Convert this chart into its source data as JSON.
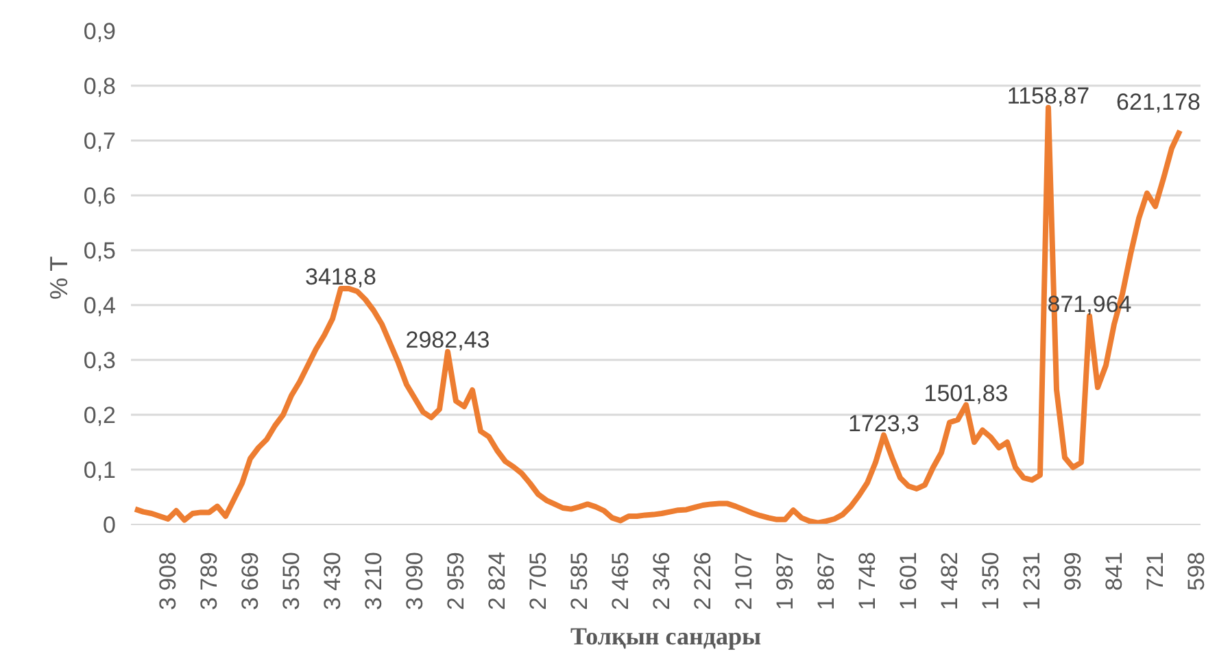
{
  "chart_data": {
    "type": "line",
    "xlabel": "Толқын сандары",
    "ylabel": "% T",
    "categories": [
      null,
      null,
      null,
      null,
      "3 908",
      null,
      null,
      null,
      null,
      "3 789",
      null,
      null,
      null,
      null,
      "3 669",
      null,
      null,
      null,
      null,
      "3 550",
      null,
      null,
      null,
      null,
      "3 430",
      null,
      null,
      null,
      null,
      "3 210",
      null,
      null,
      null,
      null,
      "3 090",
      null,
      null,
      null,
      null,
      "2 959",
      null,
      null,
      null,
      null,
      "2 824",
      null,
      null,
      null,
      null,
      "2 705",
      null,
      null,
      null,
      null,
      "2 585",
      null,
      null,
      null,
      null,
      "2 465",
      null,
      null,
      null,
      null,
      "2 346",
      null,
      null,
      null,
      null,
      "2 226",
      null,
      null,
      null,
      null,
      "2 107",
      null,
      null,
      null,
      null,
      "1 987",
      null,
      null,
      null,
      null,
      "1 867",
      null,
      null,
      null,
      null,
      "1 748",
      null,
      null,
      null,
      null,
      "1 601",
      null,
      null,
      null,
      null,
      "1 482",
      null,
      null,
      null,
      null,
      "1 350",
      null,
      null,
      null,
      null,
      "1 231",
      null,
      null,
      null,
      null,
      "999",
      null,
      null,
      null,
      null,
      "841",
      null,
      null,
      null,
      null,
      "721",
      null,
      null,
      null,
      null,
      "598"
    ],
    "series": [
      {
        "color": "#ed7d31",
        "values": [
          0.028,
          0.023,
          0.02,
          0.015,
          0.01,
          0.025,
          0.008,
          0.02,
          0.022,
          0.022,
          0.033,
          0.015,
          0.045,
          0.075,
          0.12,
          0.14,
          0.155,
          0.18,
          0.2,
          0.235,
          0.26,
          0.29,
          0.32,
          0.345,
          0.375,
          0.43,
          0.43,
          0.425,
          0.41,
          0.39,
          0.365,
          0.33,
          0.295,
          0.255,
          0.23,
          0.205,
          0.195,
          0.21,
          0.315,
          0.225,
          0.215,
          0.245,
          0.17,
          0.16,
          0.135,
          0.115,
          0.105,
          0.093,
          0.075,
          0.055,
          0.044,
          0.037,
          0.03,
          0.028,
          0.032,
          0.037,
          0.032,
          0.025,
          0.012,
          0.007,
          0.015,
          0.015,
          0.017,
          0.018,
          0.02,
          0.023,
          0.026,
          0.027,
          0.031,
          0.035,
          0.037,
          0.038,
          0.038,
          0.033,
          0.027,
          0.021,
          0.016,
          0.012,
          0.009,
          0.009,
          0.026,
          0.012,
          0.006,
          0.003,
          0.006,
          0.01,
          0.018,
          0.033,
          0.053,
          0.076,
          0.113,
          0.163,
          0.122,
          0.085,
          0.07,
          0.065,
          0.072,
          0.104,
          0.131,
          0.186,
          0.191,
          0.218,
          0.15,
          0.172,
          0.159,
          0.14,
          0.15,
          0.104,
          0.085,
          0.081,
          0.09,
          0.76,
          0.246,
          0.122,
          0.104,
          0.113,
          0.38,
          0.25,
          0.29,
          0.365,
          0.42,
          0.493,
          0.558,
          0.604,
          0.58,
          0.631,
          0.686,
          0.718,
          null,
          null
        ]
      }
    ],
    "annotations": [
      {
        "text": "3418,8",
        "y": 0.43
      },
      {
        "text": "2982,43",
        "y": 0.315
      },
      {
        "text": "1723,3",
        "y": 0.163
      },
      {
        "text": "1501,83",
        "y": 0.218
      },
      {
        "text": "1158,87",
        "y": 0.76
      },
      {
        "text": "871,964",
        "y": 0.38
      },
      "621,178"
    ],
    "ylim": [
      0,
      0.9
    ],
    "yticks": [
      0,
      {
        "value": 0.1,
        "label": "0,1"
      },
      {
        "value": 0.2,
        "label": "0,2"
      },
      {
        "value": 0.3,
        "label": "0,3"
      },
      {
        "value": 0.4,
        "label": "0,4"
      },
      {
        "value": 0.5,
        "label": "0,5"
      },
      {
        "value": 0.6,
        "label": "0,6"
      },
      {
        "value": 0.7,
        "label": "0,7"
      },
      {
        "value": 0.8,
        "label": "0,8"
      },
      {
        "value": 0.9,
        "label": "0,9"
      }
    ],
    "grid": "y",
    "marker": "none",
    "line_style": "solid"
  }
}
